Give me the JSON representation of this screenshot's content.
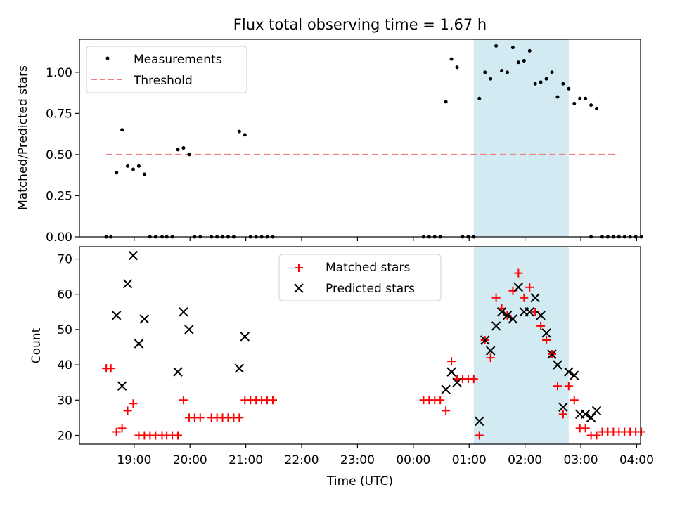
{
  "title": "Flux total observing time = 1.67 h",
  "colors": {
    "measurement": "#000000",
    "threshold": "#f08080",
    "matched": "#ff0000",
    "predicted": "#000000",
    "highlight_band": "#add8e6"
  },
  "chart_data": [
    {
      "type": "scatter",
      "ylabel": "Matched/Predicted stars",
      "xlabel": "",
      "ylim": [
        0,
        1.2
      ],
      "yticks": [
        0.0,
        0.25,
        0.5,
        0.75,
        1.0
      ],
      "ytick_labels": [
        "0.00",
        "0.25",
        "0.50",
        "0.75",
        "1.00"
      ],
      "xlim_hours": [
        18.02,
        28.07
      ],
      "legend_position": "upper-left",
      "legend": [
        "Measurements",
        "Threshold"
      ],
      "highlight_span": {
        "start": "01:05",
        "end": "02:47"
      },
      "threshold": {
        "value": 0.5,
        "start": "18:30",
        "end": "03:37"
      },
      "series": [
        {
          "name": "Measurements",
          "marker": "dot",
          "points": [
            [
              "18:30",
              0.0
            ],
            [
              "18:35",
              0.0
            ],
            [
              "18:41",
              0.39
            ],
            [
              "18:47",
              0.65
            ],
            [
              "18:53",
              0.43
            ],
            [
              "18:59",
              0.41
            ],
            [
              "19:05",
              0.43
            ],
            [
              "19:11",
              0.38
            ],
            [
              "19:17",
              0.0
            ],
            [
              "19:23",
              0.0
            ],
            [
              "19:30",
              0.0
            ],
            [
              "19:35",
              0.0
            ],
            [
              "19:41",
              0.0
            ],
            [
              "19:47",
              0.53
            ],
            [
              "19:53",
              0.54
            ],
            [
              "19:59",
              0.5
            ],
            [
              "20:05",
              0.0
            ],
            [
              "20:11",
              0.0
            ],
            [
              "20:23",
              0.0
            ],
            [
              "20:29",
              0.0
            ],
            [
              "20:35",
              0.0
            ],
            [
              "20:41",
              0.0
            ],
            [
              "20:47",
              0.0
            ],
            [
              "20:53",
              0.64
            ],
            [
              "20:59",
              0.62
            ],
            [
              "21:05",
              0.0
            ],
            [
              "21:11",
              0.0
            ],
            [
              "21:17",
              0.0
            ],
            [
              "21:23",
              0.0
            ],
            [
              "21:29",
              0.0
            ],
            [
              "00:11",
              0.0
            ],
            [
              "00:17",
              0.0
            ],
            [
              "00:23",
              0.0
            ],
            [
              "00:29",
              0.0
            ],
            [
              "00:35",
              0.82
            ],
            [
              "00:41",
              1.08
            ],
            [
              "00:47",
              1.03
            ],
            [
              "00:53",
              0.0
            ],
            [
              "00:59",
              0.0
            ],
            [
              "01:05",
              0.0
            ],
            [
              "01:11",
              0.84
            ],
            [
              "01:17",
              1.0
            ],
            [
              "01:23",
              0.96
            ],
            [
              "01:29",
              1.16
            ],
            [
              "01:35",
              1.01
            ],
            [
              "01:41",
              1.0
            ],
            [
              "01:47",
              1.15
            ],
            [
              "01:53",
              1.06
            ],
            [
              "01:59",
              1.07
            ],
            [
              "02:05",
              1.13
            ],
            [
              "02:11",
              0.93
            ],
            [
              "02:17",
              0.94
            ],
            [
              "02:23",
              0.96
            ],
            [
              "02:29",
              1.0
            ],
            [
              "02:35",
              0.85
            ],
            [
              "02:41",
              0.93
            ],
            [
              "02:47",
              0.9
            ],
            [
              "02:53",
              0.81
            ],
            [
              "02:59",
              0.84
            ],
            [
              "03:05",
              0.84
            ],
            [
              "03:11",
              0.8
            ],
            [
              "03:11",
              0.0
            ],
            [
              "03:17",
              0.78
            ],
            [
              "03:23",
              0.0
            ],
            [
              "03:29",
              0.0
            ],
            [
              "03:35",
              0.0
            ],
            [
              "03:41",
              0.0
            ],
            [
              "03:47",
              0.0
            ],
            [
              "03:53",
              0.0
            ],
            [
              "03:59",
              0.0
            ],
            [
              "04:05",
              0.0
            ]
          ]
        }
      ]
    },
    {
      "type": "scatter",
      "ylabel": "Count",
      "xlabel": "Time (UTC)",
      "ylim": [
        17.5,
        73.5
      ],
      "yticks": [
        20,
        30,
        40,
        50,
        60,
        70
      ],
      "ytick_labels": [
        "20",
        "30",
        "40",
        "50",
        "60",
        "70"
      ],
      "xlim_hours": [
        18.02,
        28.07
      ],
      "xticks": [
        "19:00",
        "20:00",
        "21:00",
        "22:00",
        "23:00",
        "00:00",
        "01:00",
        "02:00",
        "03:00",
        "04:00"
      ],
      "legend_position": "upper-center",
      "legend": [
        "Matched stars",
        "Predicted stars"
      ],
      "highlight_span": {
        "start": "01:05",
        "end": "02:47"
      },
      "series": [
        {
          "name": "Matched stars",
          "marker": "plus",
          "points": [
            [
              "18:30",
              39
            ],
            [
              "18:35",
              39
            ],
            [
              "18:41",
              21
            ],
            [
              "18:47",
              22
            ],
            [
              "18:53",
              27
            ],
            [
              "18:59",
              29
            ],
            [
              "19:05",
              20
            ],
            [
              "19:11",
              20
            ],
            [
              "19:17",
              20
            ],
            [
              "19:23",
              20
            ],
            [
              "19:30",
              20
            ],
            [
              "19:35",
              20
            ],
            [
              "19:41",
              20
            ],
            [
              "19:47",
              20
            ],
            [
              "19:53",
              30
            ],
            [
              "19:59",
              25
            ],
            [
              "20:05",
              25
            ],
            [
              "20:11",
              25
            ],
            [
              "20:23",
              25
            ],
            [
              "20:29",
              25
            ],
            [
              "20:35",
              25
            ],
            [
              "20:41",
              25
            ],
            [
              "20:47",
              25
            ],
            [
              "20:53",
              25
            ],
            [
              "20:59",
              30
            ],
            [
              "21:05",
              30
            ],
            [
              "21:11",
              30
            ],
            [
              "21:17",
              30
            ],
            [
              "21:23",
              30
            ],
            [
              "21:29",
              30
            ],
            [
              "00:11",
              30
            ],
            [
              "00:17",
              30
            ],
            [
              "00:23",
              30
            ],
            [
              "00:29",
              30
            ],
            [
              "00:35",
              27
            ],
            [
              "00:41",
              41
            ],
            [
              "00:47",
              36
            ],
            [
              "00:53",
              36
            ],
            [
              "00:59",
              36
            ],
            [
              "01:05",
              36
            ],
            [
              "01:11",
              20
            ],
            [
              "01:17",
              47
            ],
            [
              "01:23",
              42
            ],
            [
              "01:29",
              59
            ],
            [
              "01:35",
              56
            ],
            [
              "01:41",
              54
            ],
            [
              "01:47",
              61
            ],
            [
              "01:53",
              66
            ],
            [
              "01:59",
              59
            ],
            [
              "02:05",
              62
            ],
            [
              "02:11",
              55
            ],
            [
              "02:17",
              51
            ],
            [
              "02:23",
              47
            ],
            [
              "02:29",
              43
            ],
            [
              "02:35",
              34
            ],
            [
              "02:41",
              26
            ],
            [
              "02:47",
              34
            ],
            [
              "02:53",
              30
            ],
            [
              "02:59",
              22
            ],
            [
              "03:05",
              22
            ],
            [
              "03:11",
              20
            ],
            [
              "03:17",
              20
            ],
            [
              "03:23",
              21
            ],
            [
              "03:29",
              21
            ],
            [
              "03:35",
              21
            ],
            [
              "03:41",
              21
            ],
            [
              "03:47",
              21
            ],
            [
              "03:53",
              21
            ],
            [
              "03:59",
              21
            ],
            [
              "04:05",
              21
            ]
          ]
        },
        {
          "name": "Predicted stars",
          "marker": "x",
          "points": [
            [
              "18:41",
              54
            ],
            [
              "18:47",
              34
            ],
            [
              "18:53",
              63
            ],
            [
              "18:59",
              71
            ],
            [
              "19:05",
              46
            ],
            [
              "19:11",
              53
            ],
            [
              "19:47",
              38
            ],
            [
              "19:53",
              55
            ],
            [
              "19:59",
              50
            ],
            [
              "20:53",
              39
            ],
            [
              "20:59",
              48
            ],
            [
              "00:35",
              33
            ],
            [
              "00:41",
              38
            ],
            [
              "00:47",
              35
            ],
            [
              "01:11",
              24
            ],
            [
              "01:17",
              47
            ],
            [
              "01:23",
              44
            ],
            [
              "01:29",
              51
            ],
            [
              "01:35",
              55
            ],
            [
              "01:41",
              54
            ],
            [
              "01:47",
              53
            ],
            [
              "01:53",
              62
            ],
            [
              "01:59",
              55
            ],
            [
              "02:05",
              55
            ],
            [
              "02:11",
              59
            ],
            [
              "02:17",
              54
            ],
            [
              "02:23",
              49
            ],
            [
              "02:29",
              43
            ],
            [
              "02:35",
              40
            ],
            [
              "02:41",
              28
            ],
            [
              "02:47",
              38
            ],
            [
              "02:53",
              37
            ],
            [
              "02:59",
              26
            ],
            [
              "03:05",
              26
            ],
            [
              "03:11",
              25
            ],
            [
              "03:17",
              27
            ]
          ]
        }
      ]
    }
  ]
}
